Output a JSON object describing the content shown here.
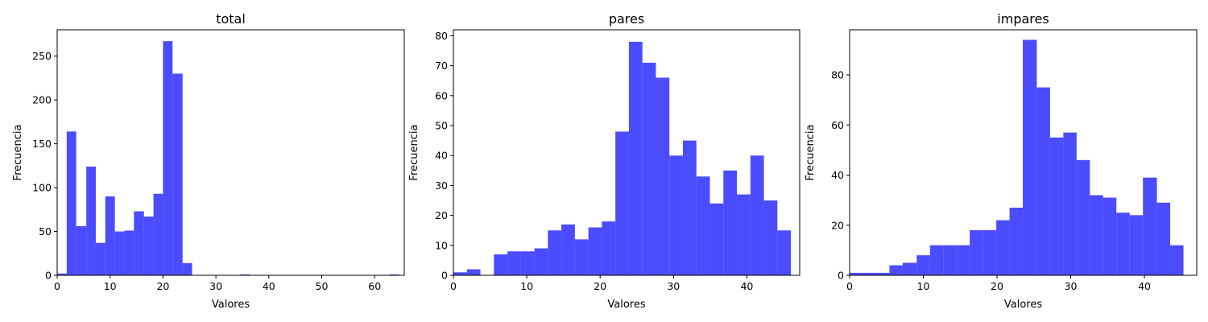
{
  "chart_data": [
    {
      "type": "histogram",
      "title": "total",
      "xlabel": "Valores",
      "ylabel": "Frecuencia",
      "xlim": [
        0,
        65.6
      ],
      "ylim": [
        0,
        280
      ],
      "xticks": [
        0,
        10,
        20,
        30,
        40,
        50,
        60
      ],
      "yticks": [
        0,
        50,
        100,
        150,
        200,
        250
      ],
      "bar_color": "#0000ff",
      "bar_opacity": 0.7,
      "bins": [
        {
          "x0": 0,
          "x1": 1.8,
          "value": 2
        },
        {
          "x0": 1.8,
          "x1": 3.6,
          "value": 164
        },
        {
          "x0": 3.6,
          "x1": 5.5,
          "value": 56
        },
        {
          "x0": 5.5,
          "x1": 7.3,
          "value": 124
        },
        {
          "x0": 7.3,
          "x1": 9.1,
          "value": 37
        },
        {
          "x0": 9.1,
          "x1": 10.9,
          "value": 90
        },
        {
          "x0": 10.9,
          "x1": 12.7,
          "value": 50
        },
        {
          "x0": 12.7,
          "x1": 14.5,
          "value": 51
        },
        {
          "x0": 14.5,
          "x1": 16.4,
          "value": 73
        },
        {
          "x0": 16.4,
          "x1": 18.2,
          "value": 67
        },
        {
          "x0": 18.2,
          "x1": 20.0,
          "value": 93
        },
        {
          "x0": 20.0,
          "x1": 21.8,
          "value": 267
        },
        {
          "x0": 21.8,
          "x1": 23.7,
          "value": 230
        },
        {
          "x0": 23.7,
          "x1": 25.5,
          "value": 14
        },
        {
          "x0": 34.6,
          "x1": 36.4,
          "value": 1
        },
        {
          "x0": 62.8,
          "x1": 64.6,
          "value": 1
        }
      ]
    },
    {
      "type": "histogram",
      "title": "pares",
      "xlabel": "Valores",
      "ylabel": "Frecuencia",
      "xlim": [
        0,
        47.2
      ],
      "ylim": [
        0,
        82
      ],
      "xticks": [
        0,
        10,
        20,
        30,
        40
      ],
      "yticks": [
        0,
        10,
        20,
        30,
        40,
        50,
        60,
        70,
        80
      ],
      "bar_color": "#0000ff",
      "bar_opacity": 0.7,
      "bins": [
        {
          "x0": 0,
          "x1": 1.84,
          "value": 1
        },
        {
          "x0": 1.84,
          "x1": 3.68,
          "value": 2
        },
        {
          "x0": 3.68,
          "x1": 5.52,
          "value": 0
        },
        {
          "x0": 5.52,
          "x1": 7.36,
          "value": 7
        },
        {
          "x0": 7.36,
          "x1": 9.2,
          "value": 8
        },
        {
          "x0": 9.2,
          "x1": 11.04,
          "value": 8
        },
        {
          "x0": 11.04,
          "x1": 12.88,
          "value": 9
        },
        {
          "x0": 12.88,
          "x1": 14.72,
          "value": 15
        },
        {
          "x0": 14.72,
          "x1": 16.56,
          "value": 17
        },
        {
          "x0": 16.56,
          "x1": 18.4,
          "value": 12
        },
        {
          "x0": 18.4,
          "x1": 20.24,
          "value": 16
        },
        {
          "x0": 20.24,
          "x1": 22.08,
          "value": 18
        },
        {
          "x0": 22.08,
          "x1": 23.92,
          "value": 48
        },
        {
          "x0": 23.92,
          "x1": 25.76,
          "value": 78
        },
        {
          "x0": 25.76,
          "x1": 27.6,
          "value": 71
        },
        {
          "x0": 27.6,
          "x1": 29.44,
          "value": 66
        },
        {
          "x0": 29.44,
          "x1": 31.28,
          "value": 40
        },
        {
          "x0": 31.28,
          "x1": 33.12,
          "value": 45
        },
        {
          "x0": 33.12,
          "x1": 34.96,
          "value": 33
        },
        {
          "x0": 34.96,
          "x1": 36.8,
          "value": 24
        },
        {
          "x0": 36.8,
          "x1": 38.64,
          "value": 35
        },
        {
          "x0": 38.64,
          "x1": 40.48,
          "value": 27
        },
        {
          "x0": 40.48,
          "x1": 42.32,
          "value": 40
        },
        {
          "x0": 42.32,
          "x1": 44.16,
          "value": 25
        },
        {
          "x0": 44.16,
          "x1": 46.0,
          "value": 15
        }
      ]
    },
    {
      "type": "histogram",
      "title": "impares",
      "xlabel": "Valores",
      "ylabel": "Frecuencia",
      "xlim": [
        0,
        47.1
      ],
      "ylim": [
        0,
        98
      ],
      "xticks": [
        0,
        10,
        20,
        30,
        40
      ],
      "yticks": [
        0,
        20,
        40,
        60,
        80
      ],
      "bar_color": "#0000ff",
      "bar_opacity": 0.7,
      "bins": [
        {
          "x0": 0,
          "x1": 1.8,
          "value": 1
        },
        {
          "x0": 1.8,
          "x1": 3.6,
          "value": 1
        },
        {
          "x0": 3.6,
          "x1": 5.4,
          "value": 1
        },
        {
          "x0": 5.4,
          "x1": 7.2,
          "value": 4
        },
        {
          "x0": 7.2,
          "x1": 9.1,
          "value": 5
        },
        {
          "x0": 9.1,
          "x1": 10.9,
          "value": 8
        },
        {
          "x0": 10.9,
          "x1": 12.7,
          "value": 12
        },
        {
          "x0": 12.7,
          "x1": 14.5,
          "value": 12
        },
        {
          "x0": 14.5,
          "x1": 16.3,
          "value": 12
        },
        {
          "x0": 16.3,
          "x1": 18.1,
          "value": 18
        },
        {
          "x0": 18.1,
          "x1": 19.9,
          "value": 18
        },
        {
          "x0": 19.9,
          "x1": 21.7,
          "value": 22
        },
        {
          "x0": 21.7,
          "x1": 23.5,
          "value": 27
        },
        {
          "x0": 23.5,
          "x1": 25.4,
          "value": 94
        },
        {
          "x0": 25.4,
          "x1": 27.2,
          "value": 75
        },
        {
          "x0": 27.2,
          "x1": 29.0,
          "value": 55
        },
        {
          "x0": 29.0,
          "x1": 30.8,
          "value": 57
        },
        {
          "x0": 30.8,
          "x1": 32.6,
          "value": 46
        },
        {
          "x0": 32.6,
          "x1": 34.4,
          "value": 32
        },
        {
          "x0": 34.4,
          "x1": 36.2,
          "value": 31
        },
        {
          "x0": 36.2,
          "x1": 38.0,
          "value": 25
        },
        {
          "x0": 38.0,
          "x1": 39.8,
          "value": 24
        },
        {
          "x0": 39.8,
          "x1": 41.7,
          "value": 39
        },
        {
          "x0": 41.7,
          "x1": 43.5,
          "value": 29
        },
        {
          "x0": 43.5,
          "x1": 45.3,
          "value": 12
        }
      ]
    }
  ]
}
